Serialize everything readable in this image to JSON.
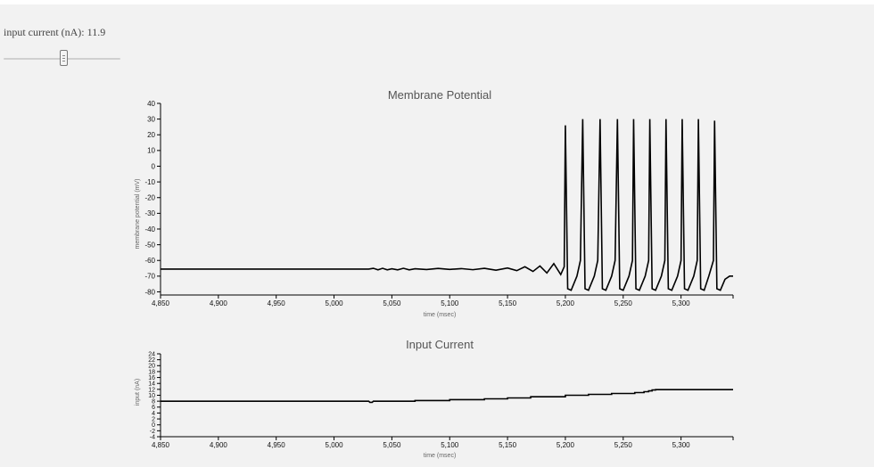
{
  "control": {
    "label": "input current (nA): 11.9",
    "slider_value": 11.9,
    "slider_fraction": 0.52
  },
  "chart_data": [
    {
      "type": "line",
      "title": "Membrane Potential",
      "xlabel": "time (msec)",
      "ylabel": "membrane potential (mV)",
      "xlim": [
        4850,
        5345
      ],
      "ylim": [
        -82,
        40
      ],
      "xticks": [
        4850,
        4900,
        4950,
        5000,
        5050,
        5100,
        5150,
        5200,
        5250,
        5300
      ],
      "xtick_labels": [
        "4,850",
        "4,900",
        "4,950",
        "5,000",
        "5,050",
        "5,100",
        "5,150",
        "5,200",
        "5,250",
        "5,300"
      ],
      "yticks": [
        -80,
        -70,
        -60,
        -50,
        -40,
        -30,
        -20,
        -10,
        0,
        10,
        20,
        30,
        40
      ],
      "ytick_labels": [
        "-80",
        "-70",
        "-60",
        "-50",
        "-40",
        "-30",
        "-20",
        "-10",
        "0",
        "10",
        "20",
        "30",
        "40"
      ],
      "grid": false,
      "color": "#000000",
      "series": [
        {
          "x": [
            4850,
            4900,
            4950,
            5000,
            5030,
            5034,
            5038,
            5042,
            5046,
            5050,
            5055,
            5060,
            5065,
            5070,
            5080,
            5090,
            5100,
            5110,
            5120,
            5130,
            5140,
            5150,
            5158,
            5165,
            5172,
            5178,
            5184,
            5190,
            5196,
            5199,
            5200,
            5202,
            5205,
            5210,
            5213,
            5215,
            5217,
            5220,
            5225,
            5228,
            5230,
            5232,
            5235,
            5240,
            5243,
            5245,
            5247,
            5250,
            5255,
            5258,
            5259,
            5261,
            5264,
            5269,
            5272,
            5273,
            5275,
            5278,
            5283,
            5286,
            5287,
            5289,
            5292,
            5297,
            5300,
            5301,
            5303,
            5306,
            5311,
            5314,
            5315,
            5317,
            5320,
            5324,
            5328,
            5329,
            5331,
            5334,
            5338,
            5342,
            5345
          ],
          "y": [
            -65.5,
            -65.5,
            -65.5,
            -65.5,
            -65.5,
            -65.0,
            -66.0,
            -65.0,
            -66.0,
            -65.3,
            -66.0,
            -65.0,
            -66.0,
            -65.3,
            -65.8,
            -65.1,
            -65.7,
            -65.2,
            -65.9,
            -65.0,
            -66.2,
            -64.8,
            -66.5,
            -64.0,
            -67.0,
            -63.5,
            -68.0,
            -62.0,
            -69.0,
            -64.0,
            26,
            -78,
            -79,
            -70,
            -60,
            30,
            -78,
            -79,
            -70,
            -60,
            30,
            -78,
            -79,
            -70,
            -60,
            30,
            -78,
            -79,
            -70,
            -60,
            30,
            -78,
            -79,
            -70,
            -60,
            30,
            -78,
            -79,
            -70,
            -60,
            30,
            -78,
            -79,
            -70,
            -60,
            30,
            -78,
            -79,
            -70,
            -60,
            30,
            -78,
            -79,
            -70,
            -60,
            29,
            -78,
            -79,
            -72,
            -70,
            -70
          ]
        }
      ]
    },
    {
      "type": "line",
      "title": "Input Current",
      "xlabel": "time (msec)",
      "ylabel": "input (nA)",
      "xlim": [
        4850,
        5345
      ],
      "ylim": [
        -4,
        24
      ],
      "xticks": [
        4850,
        4900,
        4950,
        5000,
        5050,
        5100,
        5150,
        5200,
        5250,
        5300
      ],
      "xtick_labels": [
        "4,850",
        "4,900",
        "4,950",
        "5,000",
        "5,050",
        "5,100",
        "5,150",
        "5,200",
        "5,250",
        "5,300"
      ],
      "yticks": [
        -4,
        -2,
        0,
        2,
        4,
        6,
        8,
        10,
        12,
        14,
        16,
        18,
        20,
        22,
        24
      ],
      "ytick_labels": [
        "-4",
        "-2",
        "0",
        "2",
        "4",
        "6",
        "8",
        "10",
        "12",
        "14",
        "16",
        "18",
        "20",
        "22",
        "24"
      ],
      "grid": false,
      "color": "#000000",
      "series": [
        {
          "x": [
            4850,
            5030,
            5031,
            5033,
            5034,
            5070,
            5070,
            5100,
            5100,
            5130,
            5130,
            5150,
            5150,
            5170,
            5170,
            5200,
            5200,
            5220,
            5220,
            5240,
            5240,
            5260,
            5260,
            5268,
            5268,
            5272,
            5272,
            5275,
            5275,
            5278,
            5278,
            5345
          ],
          "y": [
            8.0,
            8.0,
            7.6,
            7.6,
            8.0,
            8.0,
            8.2,
            8.2,
            8.5,
            8.5,
            8.8,
            8.8,
            9.1,
            9.1,
            9.5,
            9.5,
            10.0,
            10.0,
            10.3,
            10.3,
            10.6,
            10.6,
            10.9,
            10.9,
            11.2,
            11.2,
            11.5,
            11.5,
            11.8,
            11.8,
            11.9,
            11.9
          ]
        }
      ]
    }
  ]
}
